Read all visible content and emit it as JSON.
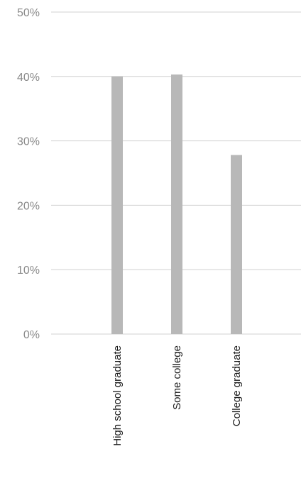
{
  "chart_data": {
    "type": "bar",
    "title": "",
    "xlabel": "",
    "ylabel": "",
    "categories": [
      "High school graduate",
      "Some college",
      "College graduate"
    ],
    "values": [
      40,
      40.3,
      27.8
    ],
    "ylim": [
      0,
      50
    ],
    "yticks": [
      0,
      10,
      20,
      30,
      40,
      50
    ],
    "ytick_labels": [
      "0%",
      "10%",
      "20%",
      "30%",
      "40%",
      "50%"
    ],
    "grid": true,
    "legend": "none",
    "bar_color": "#b8b8b8",
    "grid_color": "#d0d0d0"
  }
}
